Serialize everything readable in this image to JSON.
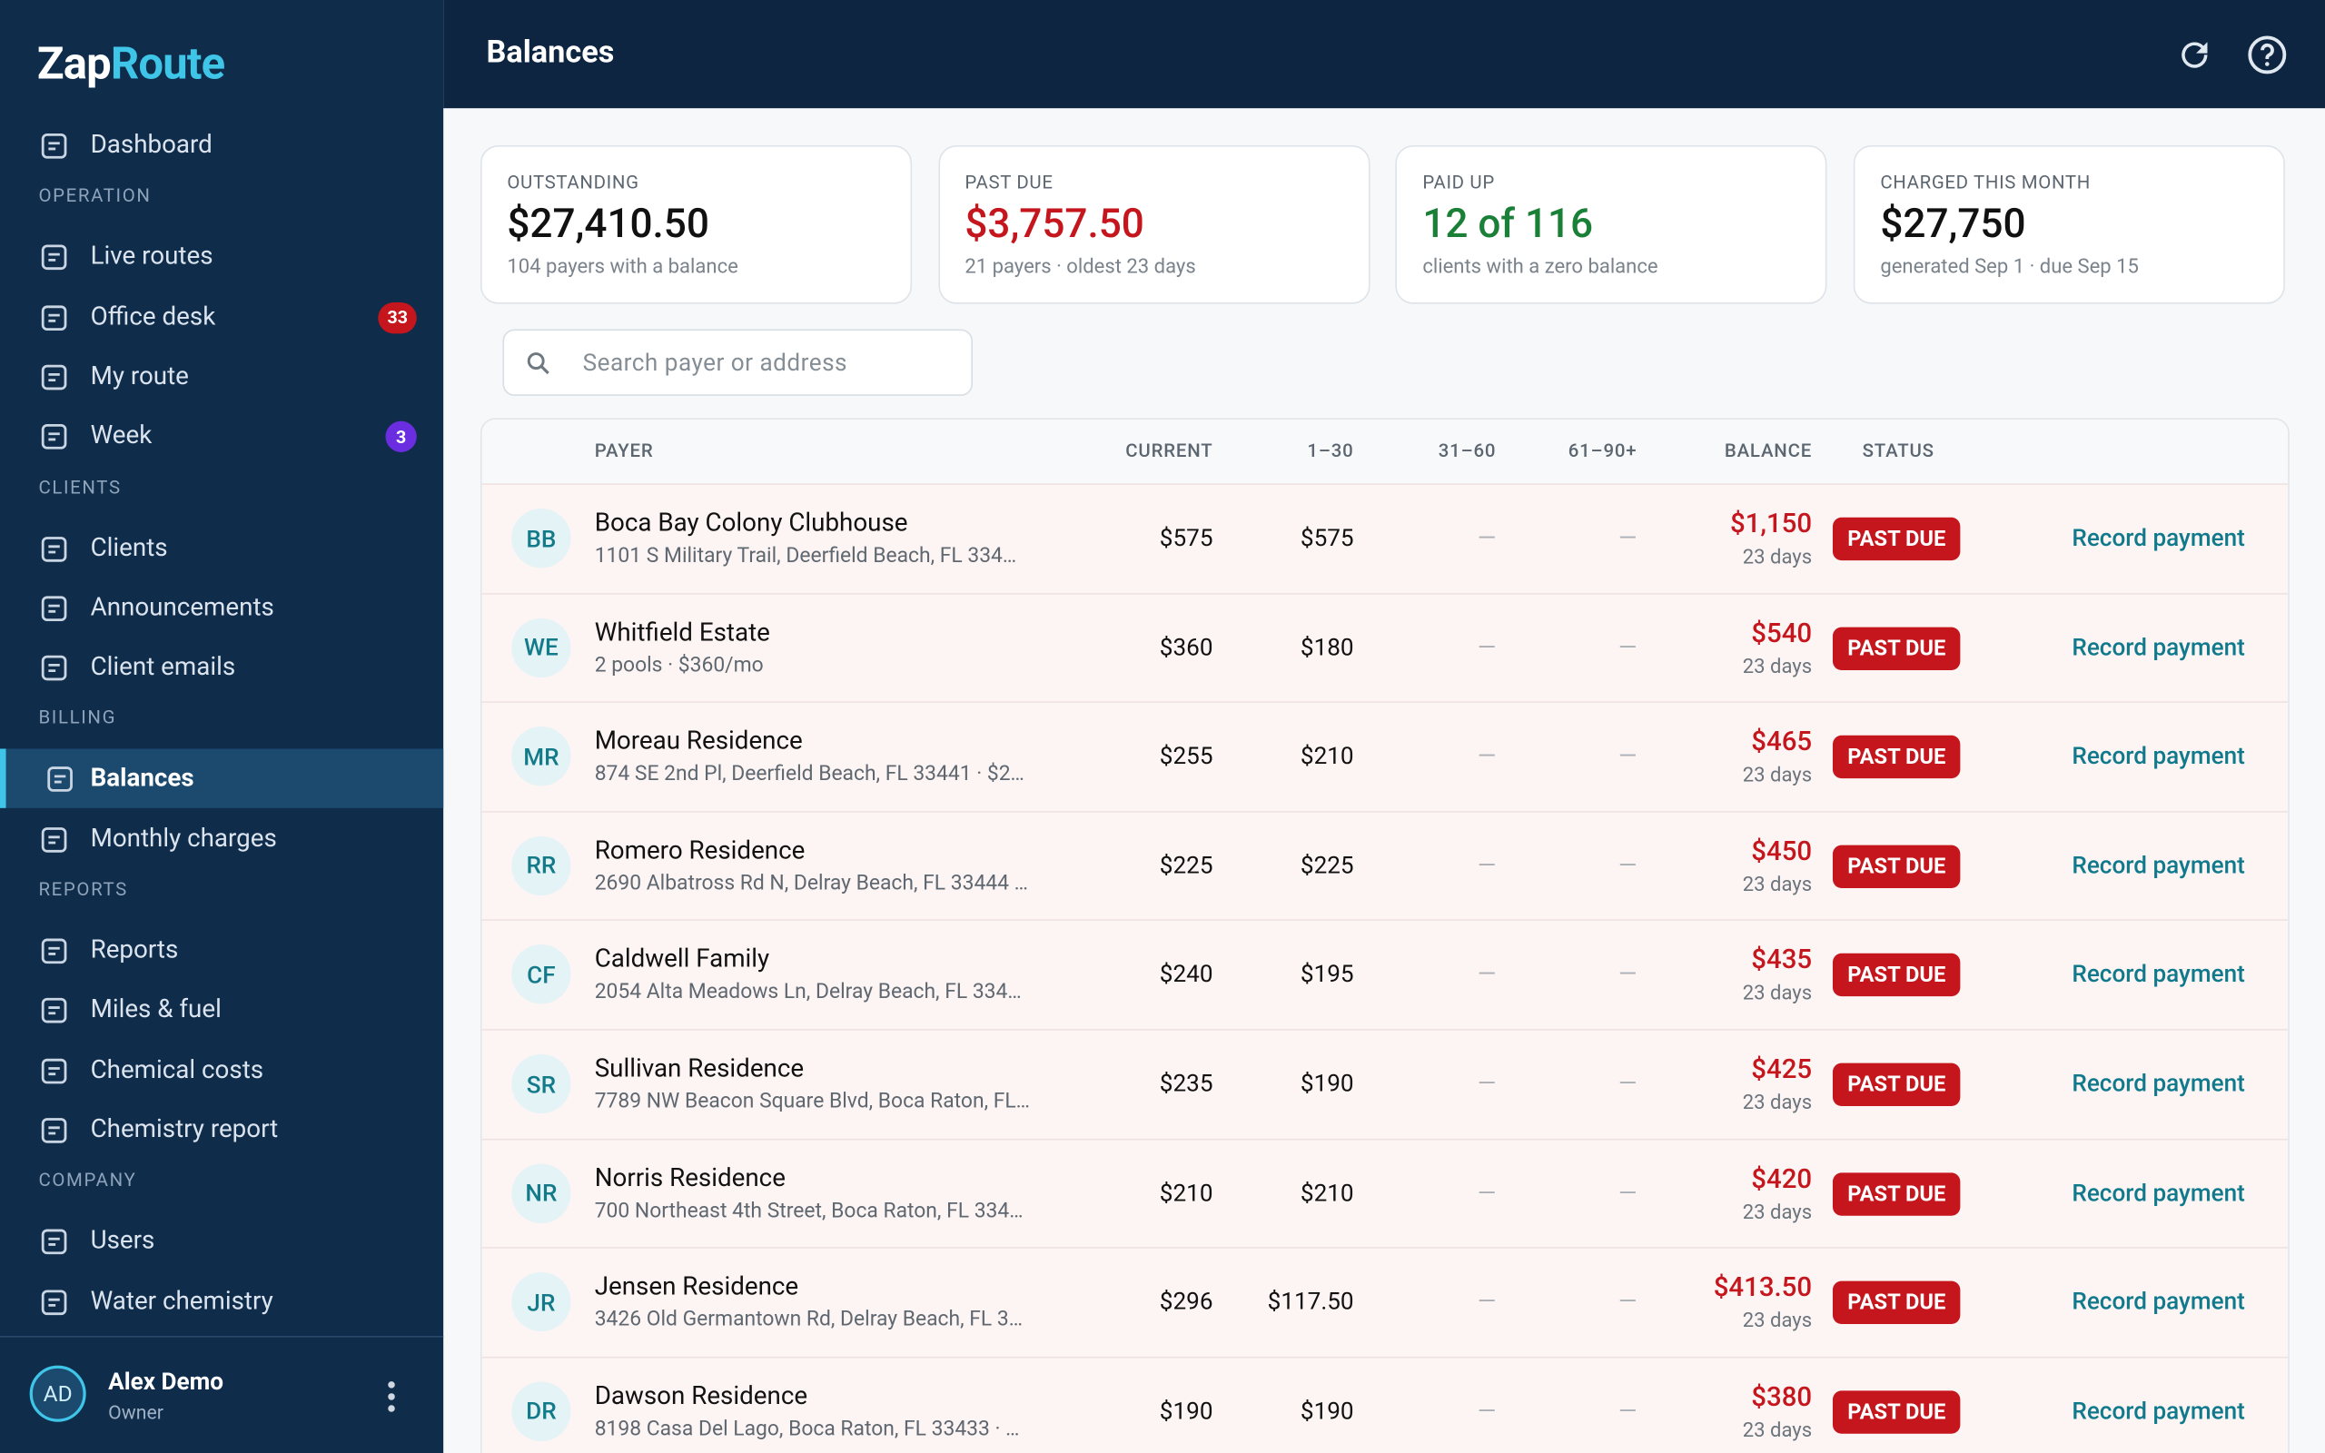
{
  "sidebar": {
    "brand": {
      "first": "Zap",
      "second": "Route"
    },
    "top": [
      {
        "label": "Dashboard"
      }
    ],
    "sections": [
      {
        "title": "OPERATION",
        "items": [
          {
            "label": "Live routes"
          },
          {
            "label": "Office desk",
            "badge": "33"
          },
          {
            "label": "My route"
          },
          {
            "label": "Week",
            "badge": "3"
          }
        ]
      },
      {
        "title": "CLIENTS",
        "items": [
          {
            "label": "Clients"
          },
          {
            "label": "Announcements"
          },
          {
            "label": "Client emails"
          }
        ]
      },
      {
        "title": "BILLING",
        "items": [
          {
            "label": "Balances",
            "active": true
          },
          {
            "label": "Monthly charges"
          }
        ]
      },
      {
        "title": "REPORTS",
        "items": [
          {
            "label": "Reports"
          },
          {
            "label": "Miles & fuel"
          },
          {
            "label": "Chemical costs"
          },
          {
            "label": "Chemistry report"
          }
        ]
      },
      {
        "title": "COMPANY",
        "items": [
          {
            "label": "Users"
          },
          {
            "label": "Water chemistry"
          }
        ]
      }
    ],
    "user": {
      "initials": "AD",
      "name": "Alex Demo",
      "role": "Owner"
    }
  },
  "header": {
    "title": "Balances"
  },
  "cards": [
    {
      "label": "OUTSTANDING",
      "value": "$27,410.50",
      "note": "104 payers with a balance",
      "tone": "normal"
    },
    {
      "label": "PAST DUE",
      "value": "$3,757.50",
      "note": "21 payers · oldest 23 days",
      "tone": "red"
    },
    {
      "label": "PAID UP",
      "value": "12 of 116",
      "note": "clients with a zero balance",
      "tone": "green"
    },
    {
      "label": "CHARGED THIS MONTH",
      "value": "$27,750",
      "note": "generated Sep 1 · due Sep 15",
      "tone": "normal"
    }
  ],
  "search": {
    "placeholder": "Search payer or address"
  },
  "table": {
    "columns": [
      "PAYER",
      "CURRENT",
      "1–30",
      "31–60",
      "61–90+",
      "BALANCE",
      "STATUS"
    ],
    "rows": [
      {
        "initials": "BB",
        "name": "Boca Bay Colony Clubhouse",
        "sub": "1101 S Military Trail, Deerfield Beach, FL 334…",
        "current": "$575",
        "d30": "$575",
        "d60": "—",
        "d90": "—",
        "balance": "$1,150",
        "days": "23 days",
        "status": "PAST DUE",
        "action": "Record payment"
      },
      {
        "initials": "WE",
        "name": "Whitfield Estate",
        "sub": "2 pools · $360/mo",
        "current": "$360",
        "d30": "$180",
        "d60": "—",
        "d90": "—",
        "balance": "$540",
        "days": "23 days",
        "status": "PAST DUE",
        "action": "Record payment"
      },
      {
        "initials": "MR",
        "name": "Moreau Residence",
        "sub": "874 SE 2nd Pl, Deerfield Beach, FL 33441 · $2…",
        "current": "$255",
        "d30": "$210",
        "d60": "—",
        "d90": "—",
        "balance": "$465",
        "days": "23 days",
        "status": "PAST DUE",
        "action": "Record payment"
      },
      {
        "initials": "RR",
        "name": "Romero Residence",
        "sub": "2690 Albatross Rd N, Delray Beach, FL 33444 …",
        "current": "$225",
        "d30": "$225",
        "d60": "—",
        "d90": "—",
        "balance": "$450",
        "days": "23 days",
        "status": "PAST DUE",
        "action": "Record payment"
      },
      {
        "initials": "CF",
        "name": "Caldwell Family",
        "sub": "2054 Alta Meadows Ln, Delray Beach, FL 334…",
        "current": "$240",
        "d30": "$195",
        "d60": "—",
        "d90": "—",
        "balance": "$435",
        "days": "23 days",
        "status": "PAST DUE",
        "action": "Record payment"
      },
      {
        "initials": "SR",
        "name": "Sullivan Residence",
        "sub": "7789 NW Beacon Square Blvd, Boca Raton, FL…",
        "current": "$235",
        "d30": "$190",
        "d60": "—",
        "d90": "—",
        "balance": "$425",
        "days": "23 days",
        "status": "PAST DUE",
        "action": "Record payment"
      },
      {
        "initials": "NR",
        "name": "Norris Residence",
        "sub": "700 Northeast 4th Street, Boca Raton, FL 334…",
        "current": "$210",
        "d30": "$210",
        "d60": "—",
        "d90": "—",
        "balance": "$420",
        "days": "23 days",
        "status": "PAST DUE",
        "action": "Record payment"
      },
      {
        "initials": "JR",
        "name": "Jensen Residence",
        "sub": "3426 Old Germantown Rd, Delray Beach, FL 3…",
        "current": "$296",
        "d30": "$117.50",
        "d60": "—",
        "d90": "—",
        "balance": "$413.50",
        "days": "23 days",
        "status": "PAST DUE",
        "action": "Record payment"
      },
      {
        "initials": "DR",
        "name": "Dawson Residence",
        "sub": "8198 Casa Del Lago, Boca Raton, FL 33433 · …",
        "current": "$190",
        "d30": "$190",
        "d60": "—",
        "d90": "—",
        "balance": "$380",
        "days": "23 days",
        "status": "PAST DUE",
        "action": "Record payment"
      }
    ]
  }
}
